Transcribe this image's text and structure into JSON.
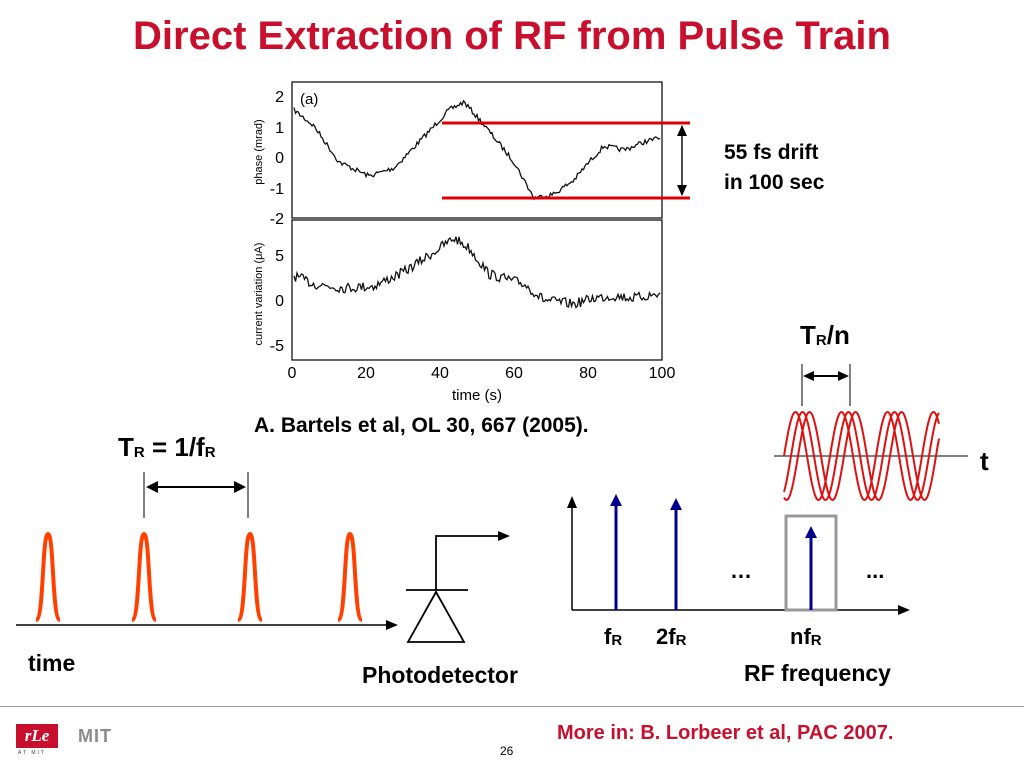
{
  "slide": {
    "title": "Direct Extraction of RF from Pulse Train",
    "page_number": "26",
    "footer_note": "More in: B. Lorbeer et al, PAC 2007."
  },
  "plot": {
    "panel_label": "(a)",
    "top_ylabel": "phase (mrad)",
    "top_yticks": [
      "2",
      "1",
      "0",
      "-1",
      "-2"
    ],
    "bottom_ylabel": "current variation (μA)",
    "bottom_yticks": [
      "5",
      "0",
      "-5"
    ],
    "xticks": [
      "0",
      "20",
      "40",
      "60",
      "80",
      "100"
    ],
    "xlabel": "time (s)",
    "drift_annotation": [
      "55 fs drift",
      "in 100 sec"
    ],
    "citation": "A. Bartels et al, OL 30, 667 (2005)."
  },
  "pulse_train": {
    "period_label": {
      "T": "T",
      "sub1": "R",
      "eq": " = 1/f",
      "sub2": "R"
    },
    "axis_label": "time"
  },
  "photodetector": {
    "label": "Photodetector"
  },
  "spectrum": {
    "labels": [
      {
        "main": "f",
        "sub": "R"
      },
      {
        "main": "2f",
        "sub": "R"
      },
      {
        "main": "nf",
        "sub": "R"
      }
    ],
    "dots_left": "…",
    "dots_right": "...",
    "axis_label": "RF frequency"
  },
  "sine": {
    "period_label": {
      "main": "T",
      "sub": "R",
      "tail": "/n"
    },
    "axis_label": "t"
  },
  "logos": {
    "rle": "rLe",
    "rle_sub": "AT MIT",
    "mit": "MIT"
  },
  "colors": {
    "title": "#c8102e",
    "pulse": "#ff4000",
    "sine": "#e01010",
    "spectrum_line": "#00008b",
    "drift_marker": "#dd0000"
  }
}
